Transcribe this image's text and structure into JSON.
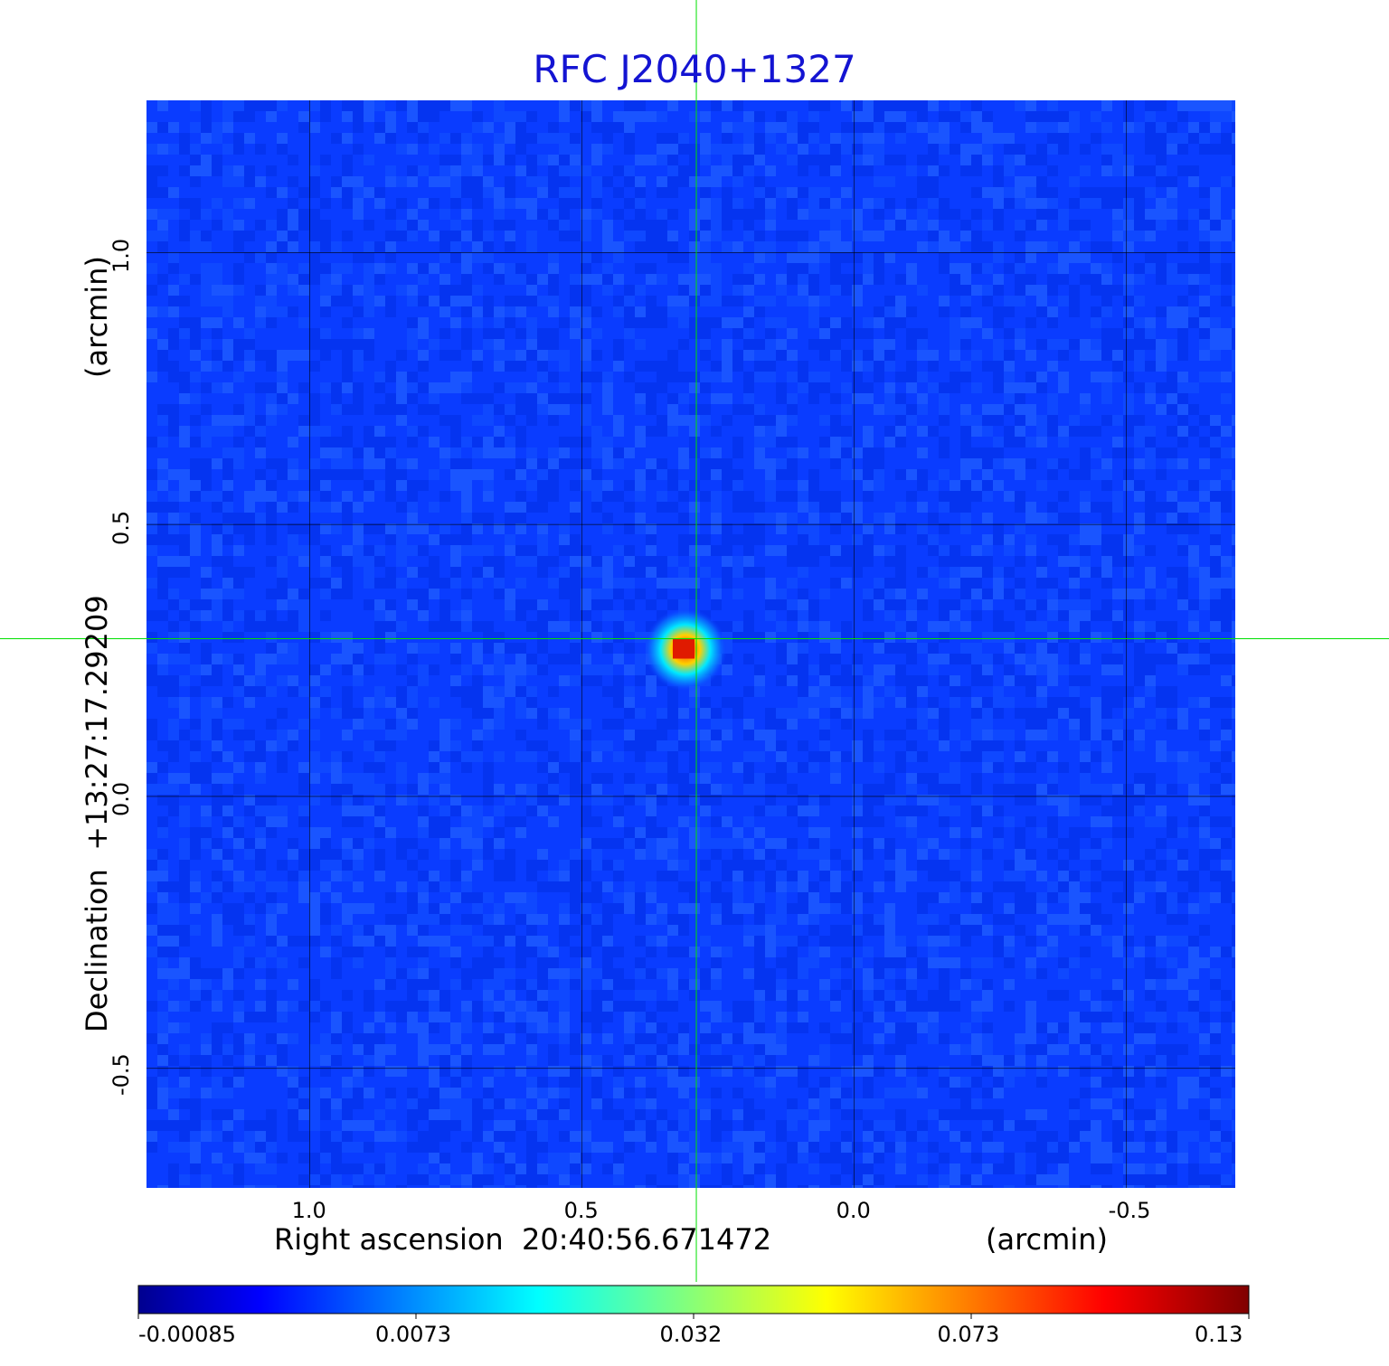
{
  "chart_data": {
    "type": "heatmap",
    "title": "RFC J2040+1327",
    "xlabel": "Right ascension  20:40:56.671472",
    "xlabel_unit": "(arcmin)",
    "ylabel": "Declination  +13:27:17.29209",
    "ylabel_unit": "(arcmin)",
    "x_ticks": [
      1.0,
      0.5,
      0.0,
      -0.5
    ],
    "x_tick_labels": [
      "1.0",
      "0.5",
      "0.0",
      "-0.5"
    ],
    "y_ticks": [
      1.0,
      0.5,
      0.0,
      -0.5
    ],
    "y_tick_labels": [
      "1.0",
      "0.5",
      "0.0",
      "-0.5"
    ],
    "xlim": [
      1.3,
      -0.7
    ],
    "ylim": [
      -0.72,
      1.28
    ],
    "grid": true,
    "crosshair": {
      "x": 0.29,
      "y": 0.29,
      "color": "#00e000"
    },
    "source_peak": {
      "x": 0.31,
      "y": 0.27,
      "value": 0.13
    },
    "colormap": "jet",
    "colorbar": {
      "ticks": [
        -0.00085,
        0.0073,
        0.032,
        0.073,
        0.13
      ],
      "tick_labels": [
        "-0.00085",
        "0.0073",
        "0.032",
        "0.073",
        "0.13"
      ],
      "range": [
        -0.00085,
        0.13
      ]
    }
  }
}
